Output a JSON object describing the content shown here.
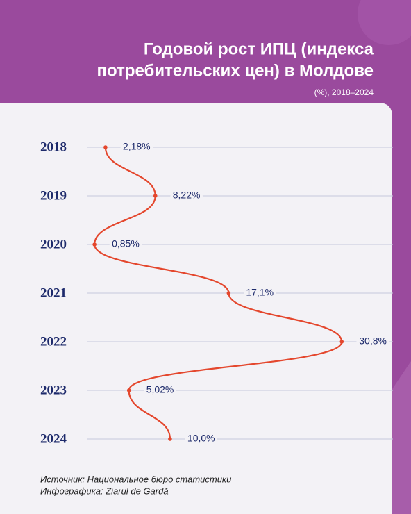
{
  "chart_data": {
    "type": "line",
    "orientation": "horizontal",
    "title": [
      "Годовой рост ИПЦ (индекса",
      "потребительских цен) в Молдове"
    ],
    "subtitle": "(%), 2018–2024",
    "categories": [
      "2018",
      "2019",
      "2020",
      "2021",
      "2022",
      "2023",
      "2024"
    ],
    "values": [
      2.18,
      8.22,
      0.85,
      17.1,
      30.8,
      5.02,
      10.0
    ],
    "value_labels": [
      "2,18%",
      "8,22%",
      "0,85%",
      "17,1%",
      "30,8%",
      "5,02%",
      "10,0%"
    ],
    "color": "#e4472d",
    "xlim": [
      0,
      37
    ],
    "grid": true,
    "source": "Источник: Национальное бюро статистики",
    "credit": "Инфографика: Ziarul de Gardă"
  }
}
